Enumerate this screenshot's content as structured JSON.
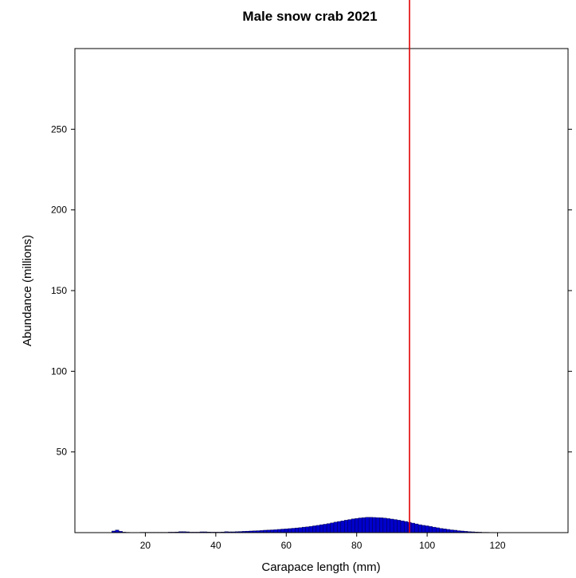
{
  "chart_data": {
    "type": "bar",
    "title": "Male snow crab 2021",
    "xlabel": "Carapace length (mm)",
    "ylabel": "Abundance (millions)",
    "xlim": [
      0,
      140
    ],
    "ylim": [
      0,
      300
    ],
    "xticks": [
      20,
      40,
      60,
      80,
      100,
      120
    ],
    "yticks": [
      50,
      100,
      150,
      200,
      250
    ],
    "bin_width": 1,
    "reference_line": {
      "x": 95,
      "color": "#e00000"
    },
    "bar_color": "#0000cc",
    "x": [
      11,
      12,
      13,
      14,
      15,
      16,
      17,
      18,
      19,
      20,
      21,
      22,
      23,
      24,
      25,
      26,
      27,
      28,
      29,
      30,
      31,
      32,
      33,
      34,
      35,
      36,
      37,
      38,
      39,
      40,
      41,
      42,
      43,
      44,
      45,
      46,
      47,
      48,
      49,
      50,
      51,
      52,
      53,
      54,
      55,
      56,
      57,
      58,
      59,
      60,
      61,
      62,
      63,
      64,
      65,
      66,
      67,
      68,
      69,
      70,
      71,
      72,
      73,
      74,
      75,
      76,
      77,
      78,
      79,
      80,
      81,
      82,
      83,
      84,
      85,
      86,
      87,
      88,
      89,
      90,
      91,
      92,
      93,
      94,
      95,
      96,
      97,
      98,
      99,
      100,
      101,
      102,
      103,
      104,
      105,
      106,
      107,
      108,
      109,
      110,
      111,
      112,
      113,
      114,
      115,
      116,
      117
    ],
    "values": [
      1.0,
      1.6,
      0.8,
      0.3,
      0.2,
      0.1,
      0.1,
      0.1,
      0.2,
      0.2,
      0.2,
      0.2,
      0.2,
      0.2,
      0.2,
      0.2,
      0.3,
      0.3,
      0.4,
      0.6,
      0.6,
      0.5,
      0.3,
      0.3,
      0.3,
      0.5,
      0.5,
      0.4,
      0.3,
      0.3,
      0.3,
      0.4,
      0.6,
      0.5,
      0.5,
      0.6,
      0.7,
      0.8,
      0.9,
      1.0,
      1.1,
      1.2,
      1.3,
      1.5,
      1.6,
      1.7,
      1.8,
      2.0,
      2.2,
      2.3,
      2.5,
      2.7,
      2.9,
      3.1,
      3.4,
      3.6,
      3.9,
      4.2,
      4.5,
      4.9,
      5.2,
      5.6,
      6.0,
      6.5,
      6.9,
      7.3,
      7.7,
      8.1,
      8.5,
      8.8,
      9.1,
      9.3,
      9.5,
      9.5,
      9.4,
      9.3,
      9.2,
      9.0,
      8.7,
      8.4,
      8.1,
      7.7,
      7.3,
      6.9,
      6.4,
      5.9,
      5.4,
      4.9,
      4.5,
      4.2,
      3.8,
      3.4,
      3.0,
      2.6,
      2.3,
      2.0,
      1.7,
      1.5,
      1.2,
      1.0,
      0.8,
      0.6,
      0.5,
      0.4,
      0.3,
      0.2,
      0.2
    ]
  }
}
